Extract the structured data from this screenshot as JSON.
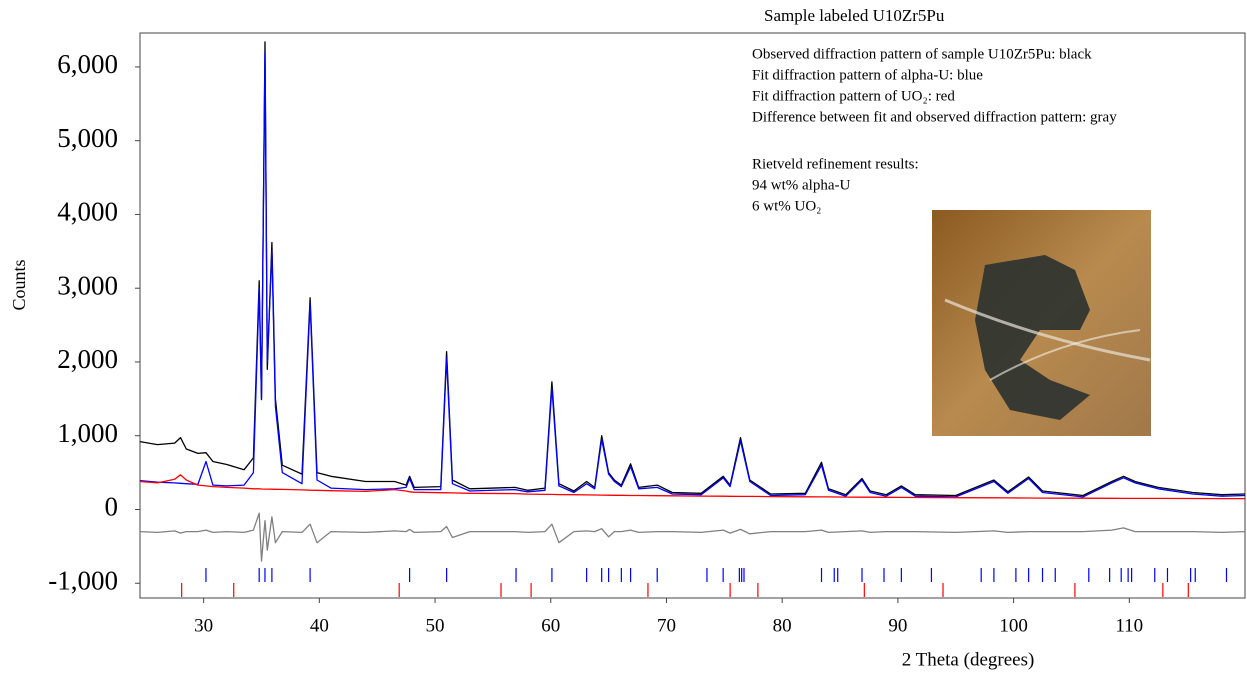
{
  "chart_data": {
    "type": "line",
    "title": "Sample labeled U10Zr5Pu",
    "notes": [
      "Observed diffraction pattern of sample U10Zr5Pu: black",
      "Fit diffraction pattern of alpha-U: blue",
      "Fit diffraction pattern of UO₂: red",
      "Difference between fit and observed diffraction pattern: gray"
    ],
    "results": [
      "Rietveld refinement results:",
      "94 wt% alpha-U",
      "6 wt% UO₂"
    ],
    "x_label": "2 Theta (degrees)",
    "y_label": "Counts",
    "xlim": [
      24.5,
      120
    ],
    "ylim": [
      -1200,
      6460
    ],
    "xticks": [
      30,
      40,
      50,
      60,
      70,
      80,
      90,
      100,
      110
    ],
    "yticks": [
      {
        "value": -1000,
        "label": "-1,000"
      },
      0,
      {
        "value": 1000,
        "label": "1,000"
      },
      {
        "value": 2000,
        "label": "2,000"
      },
      {
        "value": 3000,
        "label": "3,000"
      },
      {
        "value": 4000,
        "label": "4,000"
      },
      {
        "value": 5000,
        "label": "5,000"
      },
      {
        "value": 6000,
        "label": "6,000"
      }
    ],
    "x": [
      24.5,
      26,
      27.5,
      28,
      28.5,
      29.5,
      30.2,
      30.8,
      32,
      33.5,
      34.3,
      34.8,
      35.0,
      35.3,
      35.5,
      35.9,
      36.2,
      36.8,
      38.5,
      39.2,
      39.8,
      41,
      44,
      46.5,
      47.5,
      47.8,
      48.2,
      50.5,
      51.0,
      51.5,
      53,
      56.9,
      58,
      59.5,
      60.1,
      60.7,
      62,
      63.1,
      63.8,
      64.4,
      65,
      65.5,
      66.1,
      66.9,
      67.6,
      69.2,
      70.5,
      73,
      74.9,
      75.5,
      76.4,
      77.2,
      79,
      82,
      83.4,
      84,
      85.5,
      86.9,
      87.6,
      89,
      90.3,
      91.5,
      95,
      98.3,
      99.5,
      101.3,
      102.5,
      106,
      108.5,
      109.5,
      110.5,
      112.5,
      115.5,
      118,
      120
    ],
    "series": [
      {
        "color": "#000000",
        "values": [
          920,
          880,
          900,
          975,
          820,
          760,
          770,
          650,
          610,
          540,
          700,
          3100,
          1490,
          6340,
          1900,
          3620,
          1500,
          600,
          480,
          2870,
          500,
          450,
          380,
          380,
          330,
          450,
          300,
          310,
          2140,
          400,
          280,
          300,
          260,
          290,
          1730,
          350,
          250,
          380,
          300,
          1000,
          500,
          400,
          330,
          620,
          300,
          330,
          230,
          220,
          450,
          330,
          975,
          400,
          210,
          220,
          640,
          280,
          200,
          420,
          250,
          200,
          320,
          200,
          190,
          400,
          240,
          440,
          250,
          190,
          380,
          450,
          380,
          300,
          230,
          200,
          210
        ]
      },
      {
        "color": "#0000ff",
        "values": [
          390,
          370,
          360,
          355,
          350,
          340,
          650,
          330,
          320,
          330,
          500,
          3000,
          1500,
          6200,
          2000,
          3500,
          1400,
          500,
          350,
          2800,
          400,
          290,
          270,
          280,
          300,
          420,
          270,
          270,
          2050,
          350,
          250,
          270,
          240,
          260,
          1650,
          320,
          230,
          350,
          280,
          950,
          480,
          380,
          310,
          580,
          280,
          300,
          210,
          200,
          430,
          310,
          930,
          380,
          190,
          200,
          600,
          260,
          180,
          400,
          230,
          180,
          300,
          180,
          170,
          380,
          220,
          420,
          230,
          170,
          360,
          430,
          360,
          280,
          210,
          180,
          190
        ]
      },
      {
        "color": "#ff0000",
        "values": [
          380,
          360,
          410,
          470,
          400,
          330,
          320,
          310,
          300,
          290,
          280,
          280,
          278,
          277,
          276,
          275,
          274,
          272,
          265,
          262,
          260,
          255,
          245,
          270,
          250,
          240,
          235,
          228,
          226,
          225,
          220,
          215,
          208,
          205,
          204,
          202,
          200,
          198,
          196,
          195,
          194,
          193,
          192,
          190,
          189,
          187,
          185,
          182,
          180,
          179,
          178,
          177,
          175,
          172,
          171,
          170,
          168,
          167,
          166,
          165,
          164,
          163,
          160,
          158,
          157,
          156,
          155,
          153,
          152,
          151,
          150,
          150,
          149,
          148,
          148
        ]
      },
      {
        "color": "#808080",
        "values": [
          -300,
          -310,
          -290,
          -320,
          -300,
          -300,
          -280,
          -310,
          -300,
          -310,
          -280,
          -50,
          -700,
          -150,
          -550,
          -100,
          -450,
          -300,
          -310,
          -200,
          -450,
          -300,
          -310,
          -290,
          -300,
          -270,
          -310,
          -300,
          -230,
          -380,
          -300,
          -300,
          -310,
          -300,
          -200,
          -450,
          -300,
          -290,
          -300,
          -260,
          -370,
          -300,
          -300,
          -280,
          -310,
          -300,
          -300,
          -310,
          -280,
          -320,
          -270,
          -330,
          -300,
          -300,
          -280,
          -310,
          -300,
          -290,
          -310,
          -300,
          -300,
          -300,
          -310,
          -290,
          -310,
          -300,
          -300,
          -300,
          -280,
          -250,
          -300,
          -300,
          -300,
          -310,
          -300
        ]
      }
    ],
    "reflections": [
      {
        "color": "#0000ff",
        "positions": [
          30.2,
          34.8,
          35.3,
          35.9,
          39.2,
          47.8,
          51.0,
          57.0,
          60.1,
          63.1,
          64.4,
          65.0,
          66.1,
          66.9,
          69.2,
          73.5,
          74.9,
          76.3,
          76.5,
          76.7,
          83.4,
          84.5,
          84.8,
          86.9,
          88.8,
          90.3,
          92.9,
          97.2,
          98.3,
          100.2,
          101.3,
          102.5,
          103.6,
          106.5,
          108.3,
          109.3,
          109.9,
          110.2,
          112.2,
          113.3,
          115.3,
          115.7,
          118.4
        ]
      },
      {
        "color": "#ff0000",
        "positions": [
          28.1,
          32.6,
          46.9,
          55.7,
          58.3,
          68.4,
          75.5,
          77.9,
          87.1,
          93.9,
          105.3,
          112.9,
          115.1
        ]
      }
    ]
  }
}
